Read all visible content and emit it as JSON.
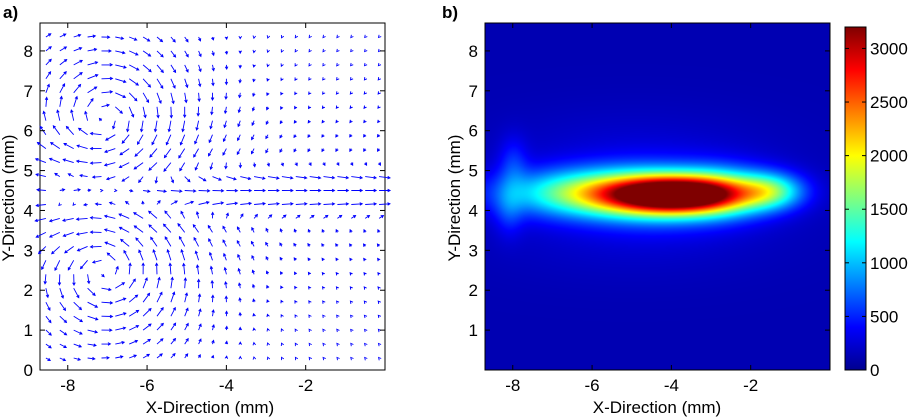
{
  "chart_data": [
    {
      "panel_label": "a)",
      "type": "quiver",
      "xlabel": "X-Direction (mm)",
      "ylabel": "Y-Direction (mm)",
      "xlim": [
        -8.7,
        0
      ],
      "ylim": [
        0,
        8.7
      ],
      "xticks": [
        -8,
        -6,
        -4,
        -2
      ],
      "xtick_labels": [
        "-8",
        "-6",
        "-4",
        "-2"
      ],
      "yticks": [
        0,
        1,
        2,
        3,
        4,
        5,
        6,
        7,
        8
      ],
      "ytick_labels": [
        "0",
        "1",
        "2",
        "3",
        "4",
        "5",
        "6",
        "7",
        "8"
      ],
      "vector_color": "#0000ff",
      "vector_grid_spacing_mm": 0.35,
      "flow_structure": {
        "jet_centerline_y": 4.45,
        "jet_half_width": 0.55,
        "upper_vortex_center": [
          -7.0,
          6.2
        ],
        "lower_vortex_center": [
          -7.0,
          2.6
        ],
        "description_level": "vector field with two counter-rotating recirculation zones around a horizontal jet"
      },
      "grid": false
    },
    {
      "panel_label": "b)",
      "type": "heatmap",
      "xlabel": "X-Direction (mm)",
      "ylabel": "Y-Direction (mm)",
      "xlim": [
        -8.7,
        0
      ],
      "ylim": [
        0,
        8.7
      ],
      "xticks": [
        -8,
        -6,
        -4,
        -2
      ],
      "xtick_labels": [
        "-8",
        "-6",
        "-4",
        "-2"
      ],
      "yticks": [
        1,
        2,
        3,
        4,
        5,
        6,
        7,
        8
      ],
      "ytick_labels": [
        "1",
        "2",
        "3",
        "4",
        "5",
        "6",
        "7",
        "8"
      ],
      "colormap": "jet",
      "clim": [
        0,
        3200
      ],
      "colorbar_ticks": [
        0,
        500,
        1000,
        1500,
        2000,
        2500,
        3000
      ],
      "colorbar_tick_labels": [
        "0",
        "500",
        "1000",
        "1500",
        "2000",
        "2500",
        "3000"
      ],
      "background_level": 160,
      "peak": {
        "x": -3.9,
        "y": 4.4,
        "value": 3200
      },
      "hotspots": [
        {
          "x": -3.9,
          "y": 4.4,
          "value": 3050,
          "sx": 1.15,
          "sy": 0.32
        },
        {
          "x": -2.7,
          "y": 4.5,
          "value": 700,
          "sx": 0.75,
          "sy": 0.4
        },
        {
          "x": -4.2,
          "y": 4.4,
          "value": 650,
          "sx": 1.6,
          "sy": 0.55
        },
        {
          "x": -6.0,
          "y": 4.45,
          "value": 1300,
          "sx": 1.55,
          "sy": 0.4
        },
        {
          "x": -1.7,
          "y": 4.5,
          "value": 650,
          "sx": 0.5,
          "sy": 0.32
        },
        {
          "x": -1.2,
          "y": 4.5,
          "value": 500,
          "sx": 0.5,
          "sy": 0.3
        },
        {
          "x": -8.0,
          "y": 5.2,
          "value": 300,
          "sx": 0.25,
          "sy": 0.45
        },
        {
          "x": -8.1,
          "y": 4.0,
          "value": 280,
          "sx": 0.25,
          "sy": 0.45
        },
        {
          "x": -5.0,
          "y": 5.4,
          "value": 100,
          "sx": 2.5,
          "sy": 0.8
        },
        {
          "x": -5.0,
          "y": 3.5,
          "value": 100,
          "sx": 2.5,
          "sy": 0.8
        }
      ]
    }
  ]
}
